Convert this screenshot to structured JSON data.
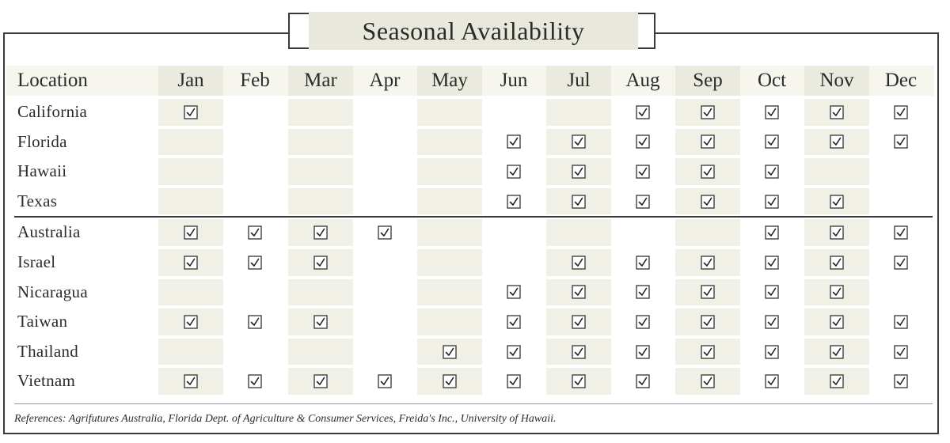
{
  "title": "Seasonal Availability",
  "location_header": "Location",
  "months": [
    "Jan",
    "Feb",
    "Mar",
    "Apr",
    "May",
    "Jun",
    "Jul",
    "Aug",
    "Sep",
    "Oct",
    "Nov",
    "Dec"
  ],
  "domestic": [
    {
      "name": "California",
      "months": [
        1,
        0,
        0,
        0,
        0,
        0,
        0,
        1,
        1,
        1,
        1,
        1
      ]
    },
    {
      "name": "Florida",
      "months": [
        0,
        0,
        0,
        0,
        0,
        1,
        1,
        1,
        1,
        1,
        1,
        1
      ]
    },
    {
      "name": "Hawaii",
      "months": [
        0,
        0,
        0,
        0,
        0,
        1,
        1,
        1,
        1,
        1,
        0,
        0
      ]
    },
    {
      "name": "Texas",
      "months": [
        0,
        0,
        0,
        0,
        0,
        1,
        1,
        1,
        1,
        1,
        1,
        0
      ]
    }
  ],
  "international": [
    {
      "name": "Australia",
      "months": [
        1,
        1,
        1,
        1,
        0,
        0,
        0,
        0,
        0,
        1,
        1,
        1
      ]
    },
    {
      "name": "Israel",
      "months": [
        1,
        1,
        1,
        0,
        0,
        0,
        1,
        1,
        1,
        1,
        1,
        1
      ]
    },
    {
      "name": "Nicaragua",
      "months": [
        0,
        0,
        0,
        0,
        0,
        1,
        1,
        1,
        1,
        1,
        1,
        0
      ]
    },
    {
      "name": "Taiwan",
      "months": [
        1,
        1,
        1,
        0,
        0,
        1,
        1,
        1,
        1,
        1,
        1,
        1
      ]
    },
    {
      "name": "Thailand",
      "months": [
        0,
        0,
        0,
        0,
        1,
        1,
        1,
        1,
        1,
        1,
        1,
        1
      ]
    },
    {
      "name": "Vietnam",
      "months": [
        1,
        1,
        1,
        1,
        1,
        1,
        1,
        1,
        1,
        1,
        1,
        1
      ]
    }
  ],
  "references": "References: Agrifutures Australia, Florida Dept. of Agriculture & Consumer Services, Freida's Inc., University of Hawaii.",
  "colors": {
    "header_band": "#f6f5ee",
    "column_shade": "#f1f0e7",
    "title_fill": "#e9e8dc",
    "text": "#2b2b2b",
    "border": "#3a3a3a"
  },
  "icons": {
    "available": "checked-box-icon"
  }
}
